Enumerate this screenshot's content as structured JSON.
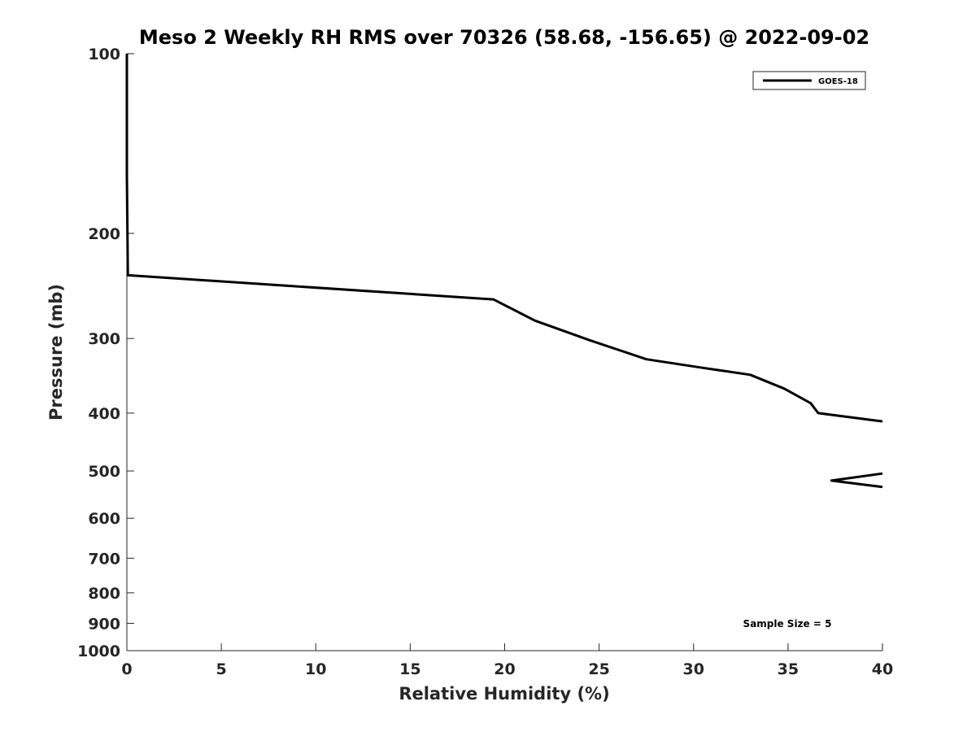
{
  "chart_data": {
    "type": "line",
    "title": "Meso 2 Weekly RH RMS over 70326 (58.68, -156.65) @ 2022-09-02",
    "xlabel": "Relative Humidity (%)",
    "ylabel": "Pressure (mb)",
    "xlim": [
      0,
      40
    ],
    "ylim": [
      1000,
      100
    ],
    "y_scale": "log",
    "x_ticks": [
      0,
      5,
      10,
      15,
      20,
      25,
      30,
      35,
      40
    ],
    "y_ticks": [
      100,
      200,
      300,
      400,
      500,
      600,
      700,
      800,
      900,
      1000
    ],
    "grid": false,
    "legend_position": "top-right",
    "annotation": "Sample Size = 5",
    "series": [
      {
        "name": "GOES-18",
        "color": "#000000",
        "segments": [
          [
            {
              "x": 0.0,
              "y": 100
            },
            {
              "x": 0.0,
              "y": 160
            },
            {
              "x": 0.05,
              "y": 235
            },
            {
              "x": 19.4,
              "y": 258
            },
            {
              "x": 21.6,
              "y": 280
            },
            {
              "x": 24.5,
              "y": 302
            },
            {
              "x": 27.5,
              "y": 325
            },
            {
              "x": 30.5,
              "y": 336
            },
            {
              "x": 33.0,
              "y": 345
            },
            {
              "x": 34.8,
              "y": 364
            },
            {
              "x": 36.2,
              "y": 385
            },
            {
              "x": 36.6,
              "y": 400
            },
            {
              "x": 40.0,
              "y": 413
            }
          ],
          [
            {
              "x": 40.0,
              "y": 505
            },
            {
              "x": 37.3,
              "y": 519
            },
            {
              "x": 40.0,
              "y": 532
            }
          ]
        ]
      }
    ]
  }
}
